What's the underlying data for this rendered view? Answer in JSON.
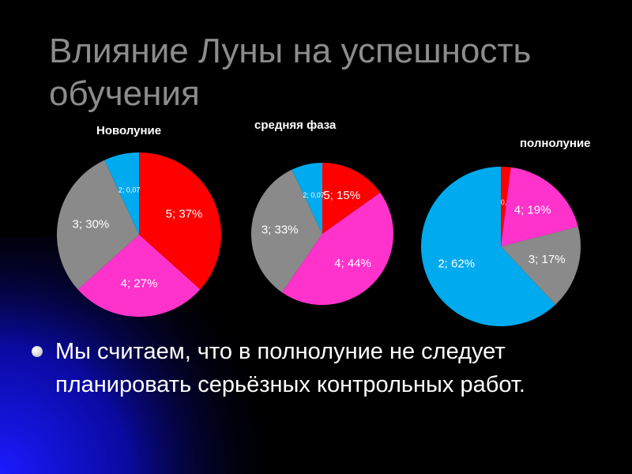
{
  "slide": {
    "title": "Влияние Луны на успешность обучения",
    "bullet": "Мы считаем, что  в полнолуние не следует планировать серьёзных контрольных работ."
  },
  "chart_data": [
    {
      "type": "pie",
      "title": "Новолуние",
      "slices": [
        {
          "label": "5; 37%",
          "value": 37,
          "color": "#ff0000"
        },
        {
          "label": "4; 27%",
          "value": 27,
          "color": "#ff33cc"
        },
        {
          "label": "3; 30%",
          "value": 30,
          "color": "#8a8a8a"
        },
        {
          "label": "2; 0,07",
          "value": 7,
          "color": "#00aaee"
        }
      ]
    },
    {
      "type": "pie",
      "title": "средняя фаза",
      "slices": [
        {
          "label": "5; 15%",
          "value": 15,
          "color": "#ff0000"
        },
        {
          "label": "4; 44%",
          "value": 44,
          "color": "#ff33cc"
        },
        {
          "label": "3; 33%",
          "value": 33,
          "color": "#8a8a8a"
        },
        {
          "label": "2; 0,07",
          "value": 7,
          "color": "#00aaee"
        }
      ]
    },
    {
      "type": "pie",
      "title": "полнолуние",
      "slices": [
        {
          "label": "5; 0,02",
          "value": 2,
          "color": "#ff0000"
        },
        {
          "label": "4; 19%",
          "value": 19,
          "color": "#ff33cc"
        },
        {
          "label": "3; 17%",
          "value": 17,
          "color": "#8a8a8a"
        },
        {
          "label": "2; 62%",
          "value": 62,
          "color": "#00aaee"
        }
      ]
    }
  ]
}
